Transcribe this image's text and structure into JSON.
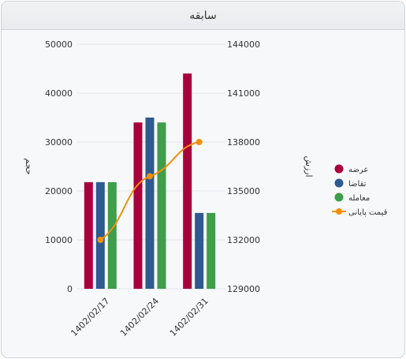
{
  "panel": {
    "title": "سابقه"
  },
  "chart_data": {
    "type": "bar",
    "categories": [
      "1402/02/17",
      "1402/02/24",
      "1402/02/31"
    ],
    "series": [
      {
        "name": "عرضه",
        "type": "bar",
        "axis": "left",
        "color": "#a8003c",
        "values": [
          21800,
          34000,
          44000
        ]
      },
      {
        "name": "تقاضا",
        "type": "bar",
        "axis": "left",
        "color": "#2f5a8f",
        "values": [
          21800,
          35000,
          15500
        ]
      },
      {
        "name": "معامله",
        "type": "bar",
        "axis": "left",
        "color": "#3e9e4a",
        "values": [
          21800,
          34000,
          15500
        ]
      },
      {
        "name": "قیمت پایانی",
        "type": "line",
        "axis": "right",
        "color": "#f0900a",
        "values": [
          132000,
          135900,
          138000
        ]
      }
    ],
    "y_left": {
      "label": "حجم",
      "min": 0,
      "max": 50000,
      "ticks": [
        "0",
        "10000",
        "20000",
        "30000",
        "40000",
        "50000"
      ]
    },
    "y_right": {
      "label": "ارزش",
      "min": 129000,
      "max": 144000,
      "ticks": [
        "129000",
        "132000",
        "135000",
        "138000",
        "141000",
        "144000"
      ]
    },
    "grid": true,
    "legend": "right"
  }
}
